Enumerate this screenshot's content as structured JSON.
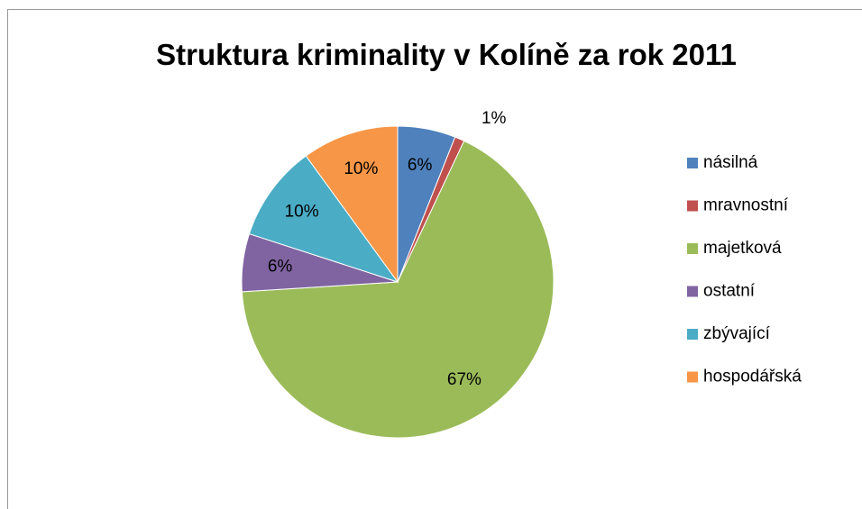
{
  "chart_data": {
    "type": "pie",
    "title": "Struktura kriminality  v Kolíně za rok 2011",
    "categories": [
      "násilná",
      "mravnostní",
      "majetková",
      "ostatní",
      "zbývající",
      "hospodářská"
    ],
    "values": [
      6,
      1,
      67,
      6,
      10,
      10
    ],
    "value_labels": [
      "6%",
      "1%",
      "67%",
      "6%",
      "10%",
      "10%"
    ],
    "colors": [
      "#4f81bd",
      "#c0504d",
      "#9bbb59",
      "#8064a2",
      "#4bacc6",
      "#f79646"
    ],
    "legend": "right"
  }
}
